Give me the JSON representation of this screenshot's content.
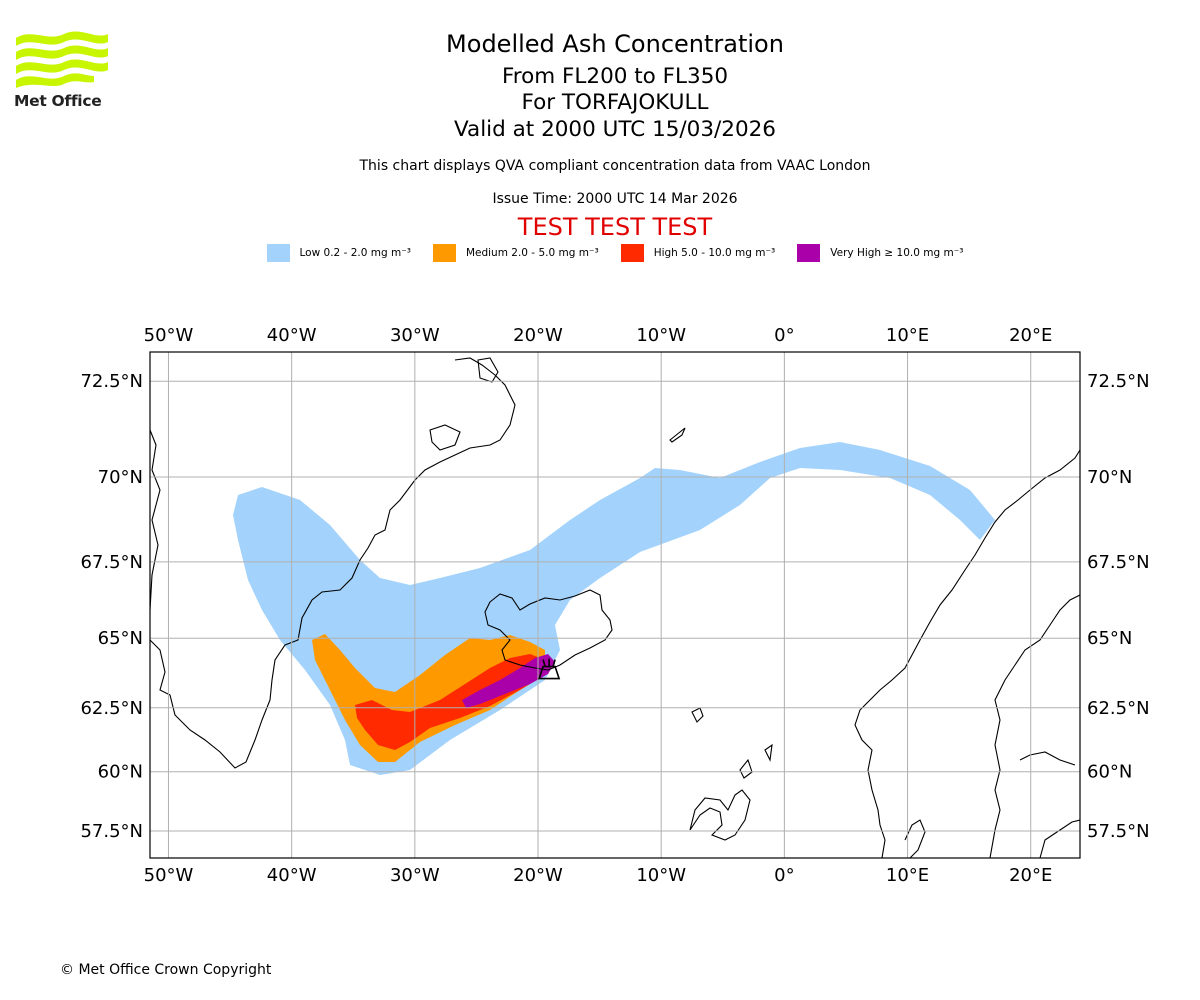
{
  "logo": {
    "text": "Met Office",
    "colors": {
      "primary": "#c8f500",
      "text": "#222222"
    }
  },
  "header": {
    "title": "Modelled Ash Concentration",
    "levels": "From FL200 to FL350",
    "volcano": "For TORFAJOKULL",
    "valid": "Valid at 2000 UTC 15/03/2026",
    "note": "This chart displays QVA compliant concentration data from VAAC London",
    "issue": "Issue Time: 2000 UTC 14 Mar 2026",
    "test": "TEST TEST TEST"
  },
  "legend": [
    {
      "label": "Low 0.2 - 2.0 mg m⁻³",
      "color": "#a3d3fc"
    },
    {
      "label": "Medium 2.0 - 5.0 mg m⁻³",
      "color": "#ff9900"
    },
    {
      "label": "High 5.0 - 10.0 mg m⁻³",
      "color": "#ff2a00"
    },
    {
      "label": "Very High  ≥  10.0 mg m⁻³",
      "color": "#aa00aa"
    }
  ],
  "map": {
    "projection": "mercator",
    "lon_range": [
      -51.5,
      24.0
    ],
    "lat_range": [
      56.3,
      73.2
    ],
    "lon_ticks": [
      {
        "value": -50,
        "label": "50°W"
      },
      {
        "value": -40,
        "label": "40°W"
      },
      {
        "value": -30,
        "label": "30°W"
      },
      {
        "value": -20,
        "label": "20°W"
      },
      {
        "value": -10,
        "label": "10°W"
      },
      {
        "value": 0,
        "label": "0°"
      },
      {
        "value": 10,
        "label": "10°E"
      },
      {
        "value": 20,
        "label": "20°E"
      }
    ],
    "lat_ticks": [
      {
        "value": 72.5,
        "label": "72.5°N"
      },
      {
        "value": 70,
        "label": "70°N"
      },
      {
        "value": 67.5,
        "label": "67.5°N"
      },
      {
        "value": 65,
        "label": "65°N"
      },
      {
        "value": 62.5,
        "label": "62.5°N"
      },
      {
        "value": 60,
        "label": "60°N"
      },
      {
        "value": 57.5,
        "label": "57.5°N"
      }
    ],
    "grid": true,
    "volcano_marker": {
      "lon": -19.1,
      "lat": 63.9
    }
  },
  "footer": {
    "copyright": "© Met Office Crown Copyright"
  }
}
